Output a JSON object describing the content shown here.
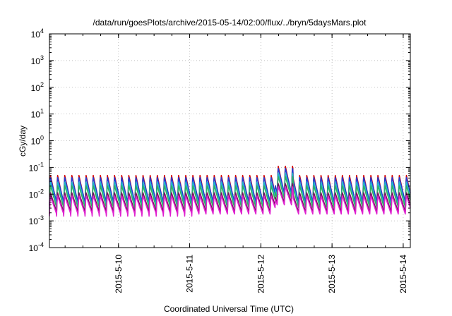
{
  "chart_data": {
    "type": "line",
    "title": "/data/run/goesPlots/archive/2015-05-14/02:00/flux/../bryn/5daysMars.plot",
    "xlabel": "Coordinated Universal Time (UTC)",
    "ylabel": "cGy/day",
    "x_range_days": [
      -0.97,
      4.1
    ],
    "x_ticks": [
      {
        "day": 0,
        "label": "2015-5-10"
      },
      {
        "day": 1,
        "label": "2015-5-11"
      },
      {
        "day": 2,
        "label": "2015-5-12"
      },
      {
        "day": 3,
        "label": "2015-5-13"
      },
      {
        "day": 4,
        "label": "2015-5-14"
      }
    ],
    "y_scale": "log",
    "y_range": [
      0.0001,
      10000
    ],
    "y_ticks": [
      {
        "exp": -4,
        "base": "10",
        "power": "-4"
      },
      {
        "exp": -3,
        "base": "10",
        "power": "-3"
      },
      {
        "exp": -2,
        "base": "10",
        "power": "-2"
      },
      {
        "exp": -1,
        "base": "10",
        "power": "-1"
      },
      {
        "exp": 0,
        "base": "10",
        "power": "0"
      },
      {
        "exp": 1,
        "base": "10",
        "power": "1"
      },
      {
        "exp": 2,
        "base": "10",
        "power": "2"
      },
      {
        "exp": 3,
        "base": "10",
        "power": "3"
      },
      {
        "exp": 4,
        "base": "10",
        "power": "4"
      }
    ],
    "grid": true,
    "cycle_period_days": 0.1,
    "series": [
      {
        "color": "#d00000",
        "peak": 0.055,
        "trough": 0.0035
      },
      {
        "color": "#1f3fd6",
        "peak": 0.045,
        "trough": 0.004
      },
      {
        "color": "#20b7c8",
        "peak": 0.03,
        "trough": 0.003
      },
      {
        "color": "#30b060",
        "peak": 0.022,
        "trough": 0.0025
      },
      {
        "color": "#7a1060",
        "peak": 0.012,
        "trough": 0.0018
      },
      {
        "color": "#e020d0",
        "peak": 0.009,
        "trough": 0.0015
      }
    ],
    "event": {
      "start_day": 2.2,
      "end_day": 2.45,
      "boost": 2.2
    }
  }
}
